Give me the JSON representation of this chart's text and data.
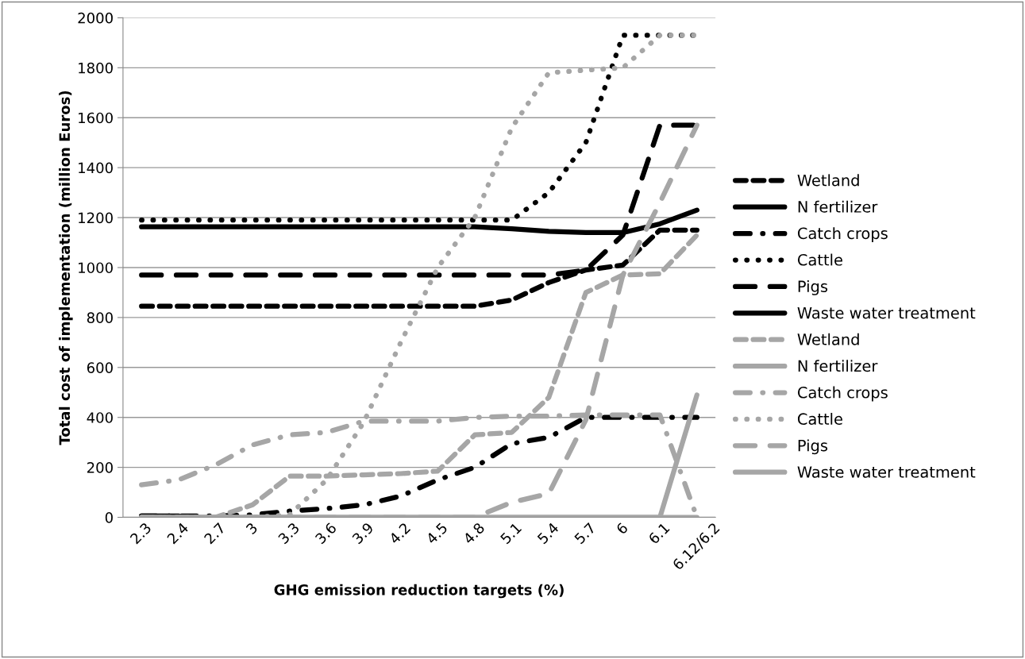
{
  "chart_data": {
    "type": "line",
    "xlabel": "GHG emission reduction targets (%)",
    "ylabel": "Total cost of implementation (million Euros)",
    "categories": [
      "2.3",
      "2.4",
      "2.7",
      "3",
      "3.3",
      "3.6",
      "3.9",
      "4.2",
      "4.5",
      "4.8",
      "5.1",
      "5.4",
      "5.7",
      "6",
      "6.1",
      "6.12/6.2"
    ],
    "ylim": [
      0,
      2000
    ],
    "yticks": [
      0,
      200,
      400,
      600,
      800,
      1000,
      1200,
      1400,
      1600,
      1800,
      2000
    ],
    "grid": "y",
    "legend": "right",
    "marker": "none",
    "series": [
      {
        "name": "Wetland",
        "color": "#000000",
        "line_style": "dashed",
        "values": [
          845,
          845,
          845,
          845,
          845,
          845,
          845,
          845,
          845,
          845,
          870,
          940,
          990,
          1010,
          1150,
          1150
        ]
      },
      {
        "name": "N fertilizer",
        "color": "#000000",
        "line_style": "solid",
        "values": [
          1163,
          1163,
          1163,
          1163,
          1163,
          1163,
          1163,
          1163,
          1163,
          1163,
          1155,
          1145,
          1140,
          1140,
          1175,
          1230
        ]
      },
      {
        "name": "Catch crops",
        "color": "#000000",
        "line_style": "dashdot",
        "values": [
          5,
          5,
          5,
          10,
          25,
          35,
          50,
          85,
          150,
          200,
          295,
          320,
          400,
          400,
          400,
          400
        ]
      },
      {
        "name": "Cattle",
        "color": "#000000",
        "line_style": "dotted",
        "values": [
          1190,
          1190,
          1190,
          1190,
          1190,
          1190,
          1190,
          1190,
          1190,
          1190,
          1190,
          1300,
          1500,
          1930,
          1930,
          1930
        ]
      },
      {
        "name": "Pigs",
        "color": "#000000",
        "line_style": "longdash",
        "values": [
          970,
          970,
          970,
          970,
          970,
          970,
          970,
          970,
          970,
          970,
          970,
          970,
          990,
          1130,
          1570,
          1570
        ]
      },
      {
        "name": "Waste water treatment",
        "color": "#000000",
        "line_style": "solid",
        "values": [
          5,
          5,
          null,
          null,
          null,
          null,
          null,
          null,
          null,
          null,
          null,
          null,
          null,
          null,
          null,
          null
        ]
      },
      {
        "name": "Wetland",
        "color": "#a6a6a6",
        "line_style": "dashed",
        "values": [
          0,
          0,
          0,
          50,
          165,
          165,
          170,
          175,
          185,
          330,
          340,
          480,
          900,
          970,
          975,
          1130
        ]
      },
      {
        "name": "N fertilizer",
        "color": "#a6a6a6",
        "line_style": "solid",
        "values": [
          0,
          0,
          0,
          0,
          0,
          0,
          0,
          0,
          0,
          0,
          0,
          0,
          0,
          0,
          0,
          0
        ]
      },
      {
        "name": "Catch crops",
        "color": "#a6a6a6",
        "line_style": "dashdot",
        "values": [
          130,
          150,
          210,
          290,
          330,
          340,
          385,
          385,
          385,
          400,
          405,
          405,
          410,
          410,
          410,
          0
        ]
      },
      {
        "name": "Cattle",
        "color": "#a6a6a6",
        "line_style": "dotted",
        "values": [
          0,
          0,
          0,
          0,
          10,
          150,
          380,
          700,
          1000,
          1200,
          1560,
          1780,
          1790,
          1800,
          1930,
          1930
        ]
      },
      {
        "name": "Pigs",
        "color": "#a6a6a6",
        "line_style": "longdash",
        "values": [
          0,
          0,
          0,
          0,
          0,
          0,
          0,
          0,
          0,
          0,
          60,
          95,
          390,
          970,
          1260,
          1570
        ]
      },
      {
        "name": "Waste water treatment",
        "color": "#a6a6a6",
        "line_style": "solid",
        "values": [
          0,
          0,
          0,
          0,
          0,
          0,
          0,
          0,
          0,
          0,
          0,
          0,
          0,
          0,
          0,
          490
        ]
      }
    ]
  }
}
